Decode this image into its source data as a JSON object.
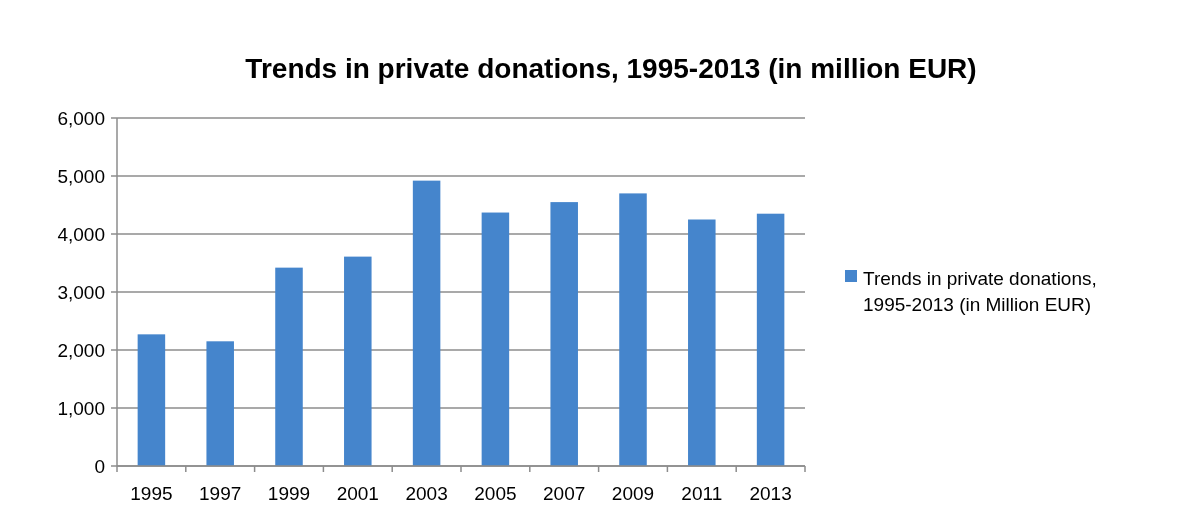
{
  "chart_data": {
    "type": "bar",
    "title": "Trends in private donations, 1995-2013 (in million EUR)",
    "categories": [
      "1995",
      "1997",
      "1999",
      "2001",
      "2003",
      "2005",
      "2007",
      "2009",
      "2011",
      "2013"
    ],
    "series": [
      {
        "name": "Trends in private donations, 1995-2013 (in Million EUR)",
        "color": "#4585cc",
        "values": [
          2270,
          2150,
          3420,
          3610,
          4920,
          4370,
          4550,
          4700,
          4250,
          4350
        ]
      }
    ],
    "ylim": [
      0,
      6000
    ],
    "yticks": [
      {
        "value": 0,
        "label": "0"
      },
      {
        "value": 1000,
        "label": "1,000"
      },
      {
        "value": 2000,
        "label": "2,000"
      },
      {
        "value": 3000,
        "label": "3,000"
      },
      {
        "value": 4000,
        "label": "4,000"
      },
      {
        "value": 5000,
        "label": "5,000"
      },
      {
        "value": 6000,
        "label": "6,000"
      }
    ],
    "grid": "y",
    "legend": "right"
  }
}
